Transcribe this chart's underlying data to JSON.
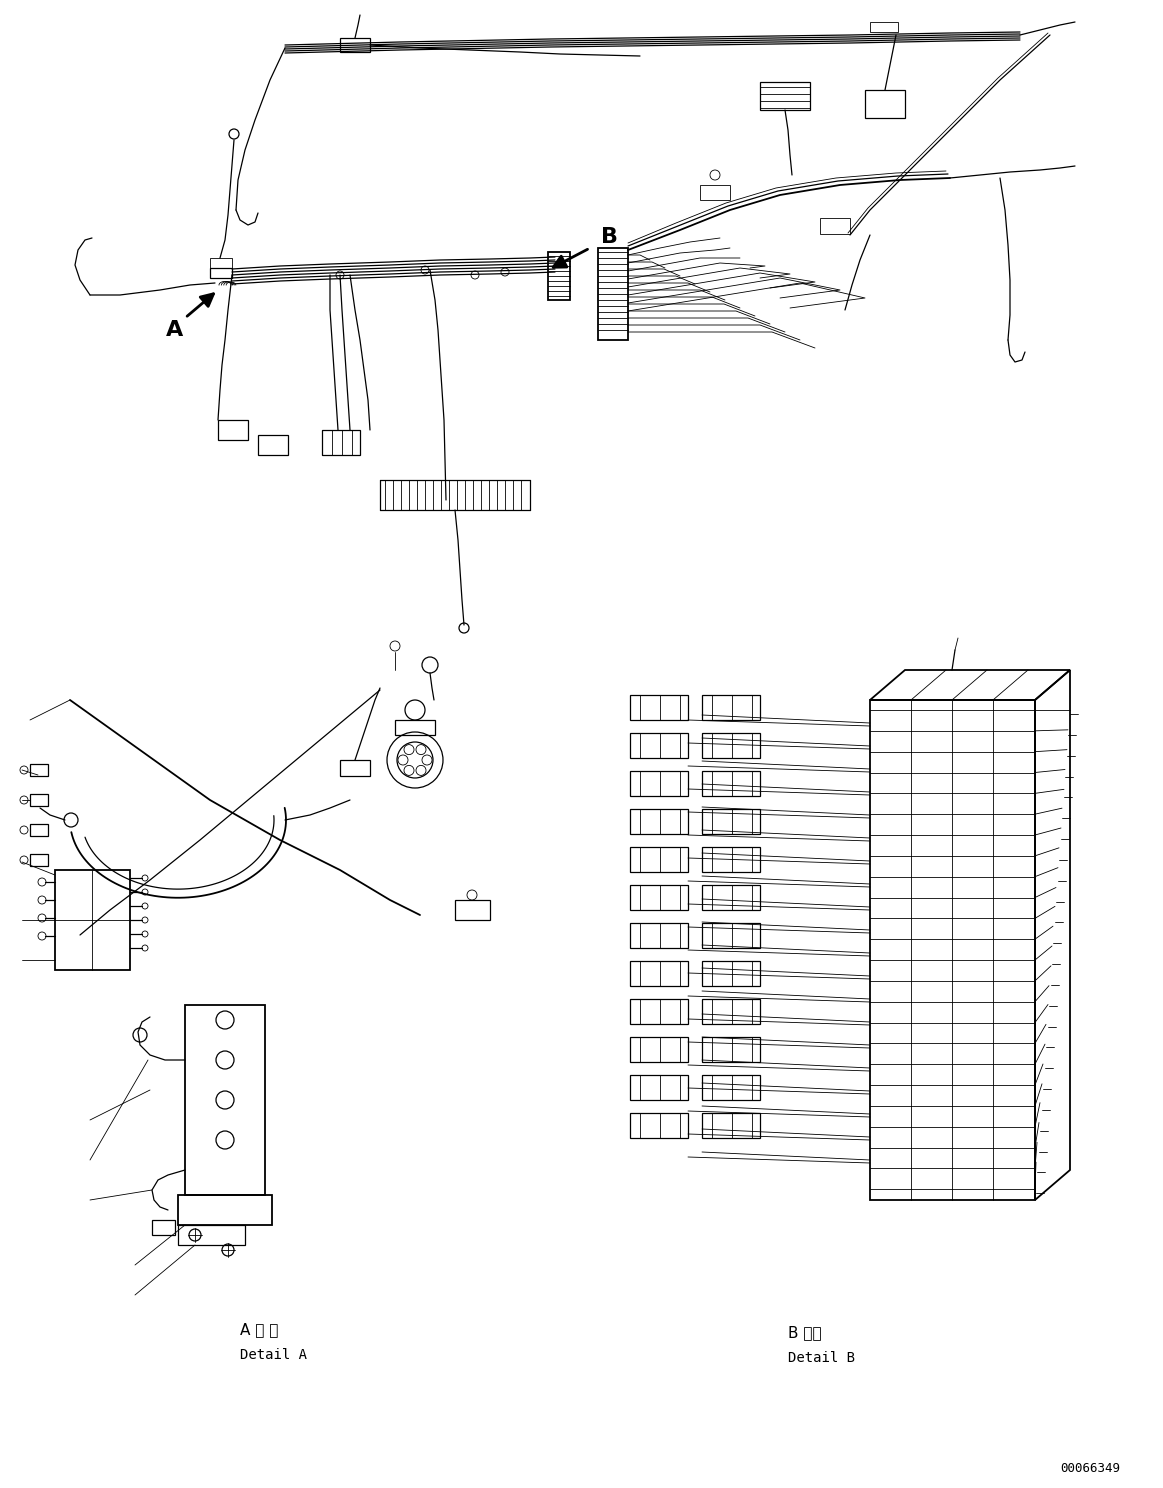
{
  "background_color": "#ffffff",
  "line_color": "#000000",
  "figure_width": 11.63,
  "figure_height": 14.88,
  "dpi": 100,
  "part_number": "00066349",
  "label_A": "A",
  "label_B": "B",
  "detail_A_japanese": "A 詳 細",
  "detail_A_english": "Detail A",
  "detail_B_japanese": "B 詳細",
  "detail_B_english": "Detail B",
  "font_size_labels": 16,
  "font_size_part": 9,
  "font_size_detail": 10
}
